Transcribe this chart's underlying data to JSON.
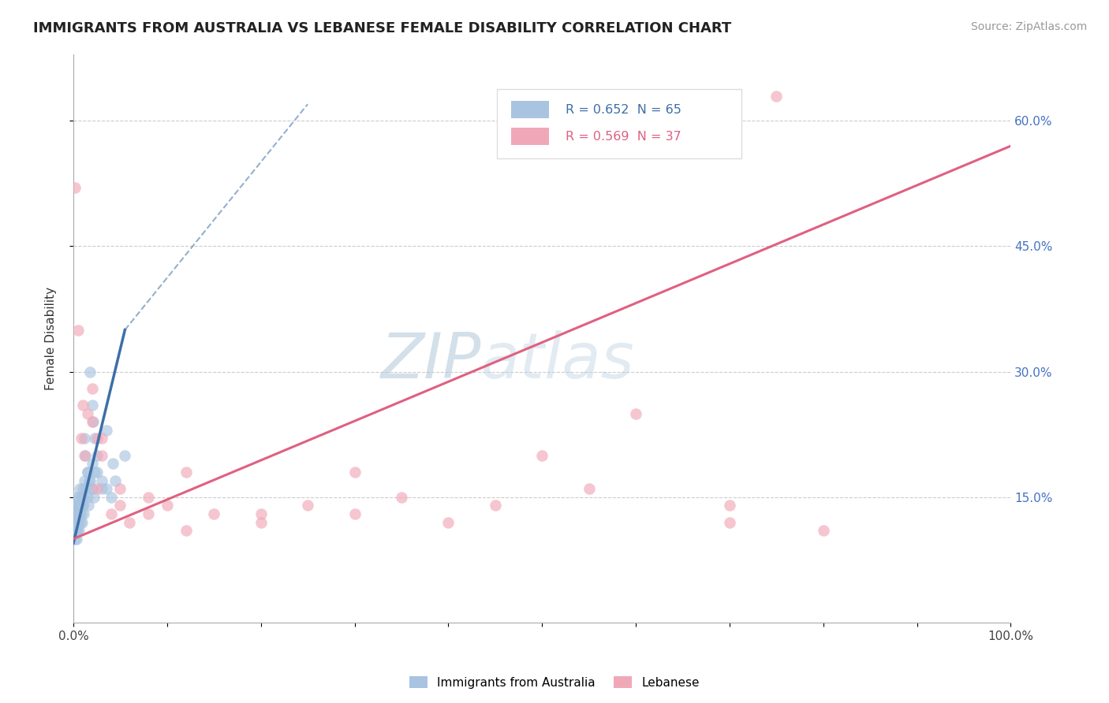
{
  "title": "IMMIGRANTS FROM AUSTRALIA VS LEBANESE FEMALE DISABILITY CORRELATION CHART",
  "source": "Source: ZipAtlas.com",
  "ylabel": "Female Disability",
  "blue_color": "#a8c4e0",
  "blue_line_color": "#3d6fa8",
  "pink_color": "#f0a8b8",
  "pink_line_color": "#e06080",
  "watermark_zip": "ZIP",
  "watermark_atlas": "atlas",
  "grid_color": "#cccccc",
  "legend_blue_text": "R = 0.652  N = 65",
  "legend_pink_text": "R = 0.569  N = 37",
  "blue_label": "Immigrants from Australia",
  "pink_label": "Lebanese",
  "right_ytick_labels": [
    "15.0%",
    "30.0%",
    "45.0%",
    "60.0%"
  ],
  "right_ytick_vals": [
    15,
    30,
    45,
    60
  ],
  "xlim": [
    0,
    100
  ],
  "ylim": [
    0,
    68
  ],
  "pink_line_x0": 0,
  "pink_line_y0": 10.0,
  "pink_line_x1": 100,
  "pink_line_y1": 57.0,
  "blue_line_x0": 0.0,
  "blue_line_y0": 9.5,
  "blue_line_x1": 5.5,
  "blue_line_y1": 35.0,
  "blue_dash_x0": 5.5,
  "blue_dash_y0": 35.0,
  "blue_dash_x1": 25.0,
  "blue_dash_y1": 62.0,
  "blue_scatter_x": [
    0.1,
    0.15,
    0.2,
    0.25,
    0.3,
    0.35,
    0.4,
    0.5,
    0.6,
    0.7,
    0.8,
    0.9,
    1.0,
    1.1,
    1.2,
    1.3,
    1.5,
    1.7,
    1.9,
    2.1,
    2.3,
    2.5,
    0.2,
    0.3,
    0.4,
    0.5,
    0.6,
    0.8,
    1.0,
    1.2,
    1.5,
    2.0,
    2.5,
    3.0,
    3.5,
    4.0,
    0.1,
    0.2,
    0.3,
    0.5,
    0.7,
    1.0,
    1.5,
    2.0,
    0.15,
    0.25,
    0.4,
    0.6,
    0.9,
    1.3,
    1.8,
    2.3,
    0.35,
    0.55,
    0.75,
    1.1,
    1.6,
    2.2,
    3.0,
    4.5,
    5.5,
    2.0,
    3.5,
    4.2,
    1.8
  ],
  "blue_scatter_y": [
    12,
    13,
    14,
    15,
    13,
    12,
    11,
    14,
    15,
    16,
    13,
    12,
    14,
    15,
    22,
    20,
    18,
    17,
    16,
    24,
    22,
    20,
    10,
    11,
    12,
    13,
    14,
    15,
    16,
    17,
    18,
    19,
    18,
    17,
    16,
    15,
    13,
    14,
    11,
    12,
    13,
    14,
    15,
    16,
    11,
    12,
    13,
    14,
    15,
    16,
    17,
    18,
    10,
    11,
    12,
    13,
    14,
    15,
    16,
    17,
    20,
    26,
    23,
    19,
    30
  ],
  "pink_scatter_x": [
    0.2,
    0.5,
    0.8,
    1.2,
    1.5,
    2.0,
    2.5,
    3.0,
    4.0,
    5.0,
    6.0,
    8.0,
    10.0,
    12.0,
    15.0,
    20.0,
    25.0,
    30.0,
    35.0,
    40.0,
    50.0,
    60.0,
    70.0,
    80.0,
    1.0,
    2.0,
    3.0,
    5.0,
    8.0,
    12.0,
    20.0,
    30.0,
    45.0,
    55.0,
    70.0,
    2.5,
    75.0
  ],
  "pink_scatter_y": [
    52,
    35,
    22,
    20,
    25,
    24,
    22,
    20,
    13,
    14,
    12,
    13,
    14,
    11,
    13,
    12,
    14,
    13,
    15,
    12,
    20,
    25,
    14,
    11,
    26,
    28,
    22,
    16,
    15,
    18,
    13,
    18,
    14,
    16,
    12,
    16,
    63
  ]
}
